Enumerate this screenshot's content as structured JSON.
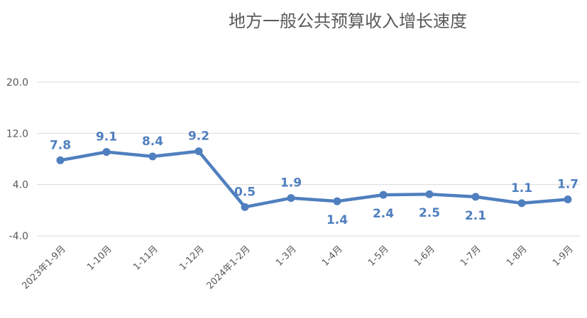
{
  "chart_data": {
    "type": "line",
    "title": "地方一般公共预算收入增长速度",
    "xlabel": "",
    "ylabel": "",
    "categories": [
      "2023年1-9月",
      "1-10月",
      "1-11月",
      "1-12月",
      "2024年1-2月",
      "1-3月",
      "1-4月",
      "1-5月",
      "1-6月",
      "1-7月",
      "1-8月",
      "1-9月"
    ],
    "series": [
      {
        "values": [
          7.8,
          9.1,
          8.4,
          9.2,
          0.5,
          1.9,
          1.4,
          2.4,
          2.5,
          2.1,
          1.1,
          1.7
        ]
      }
    ],
    "data_labels": [
      "7.8",
      "9.1",
      "8.4",
      "9.2",
      "0.5",
      "1.9",
      "1.4",
      "2.4",
      "2.5",
      "2.1",
      "1.1",
      "1.7"
    ],
    "yticks": [
      "-4.0",
      "4.0",
      "12.0",
      "20.0"
    ],
    "ylim": [
      -4,
      20
    ],
    "grid": true,
    "legend": "none",
    "colors": {
      "line": "#4f7fbf",
      "label": "#4f7fbf",
      "grid": "#d9d9d9",
      "text": "#595959"
    }
  }
}
